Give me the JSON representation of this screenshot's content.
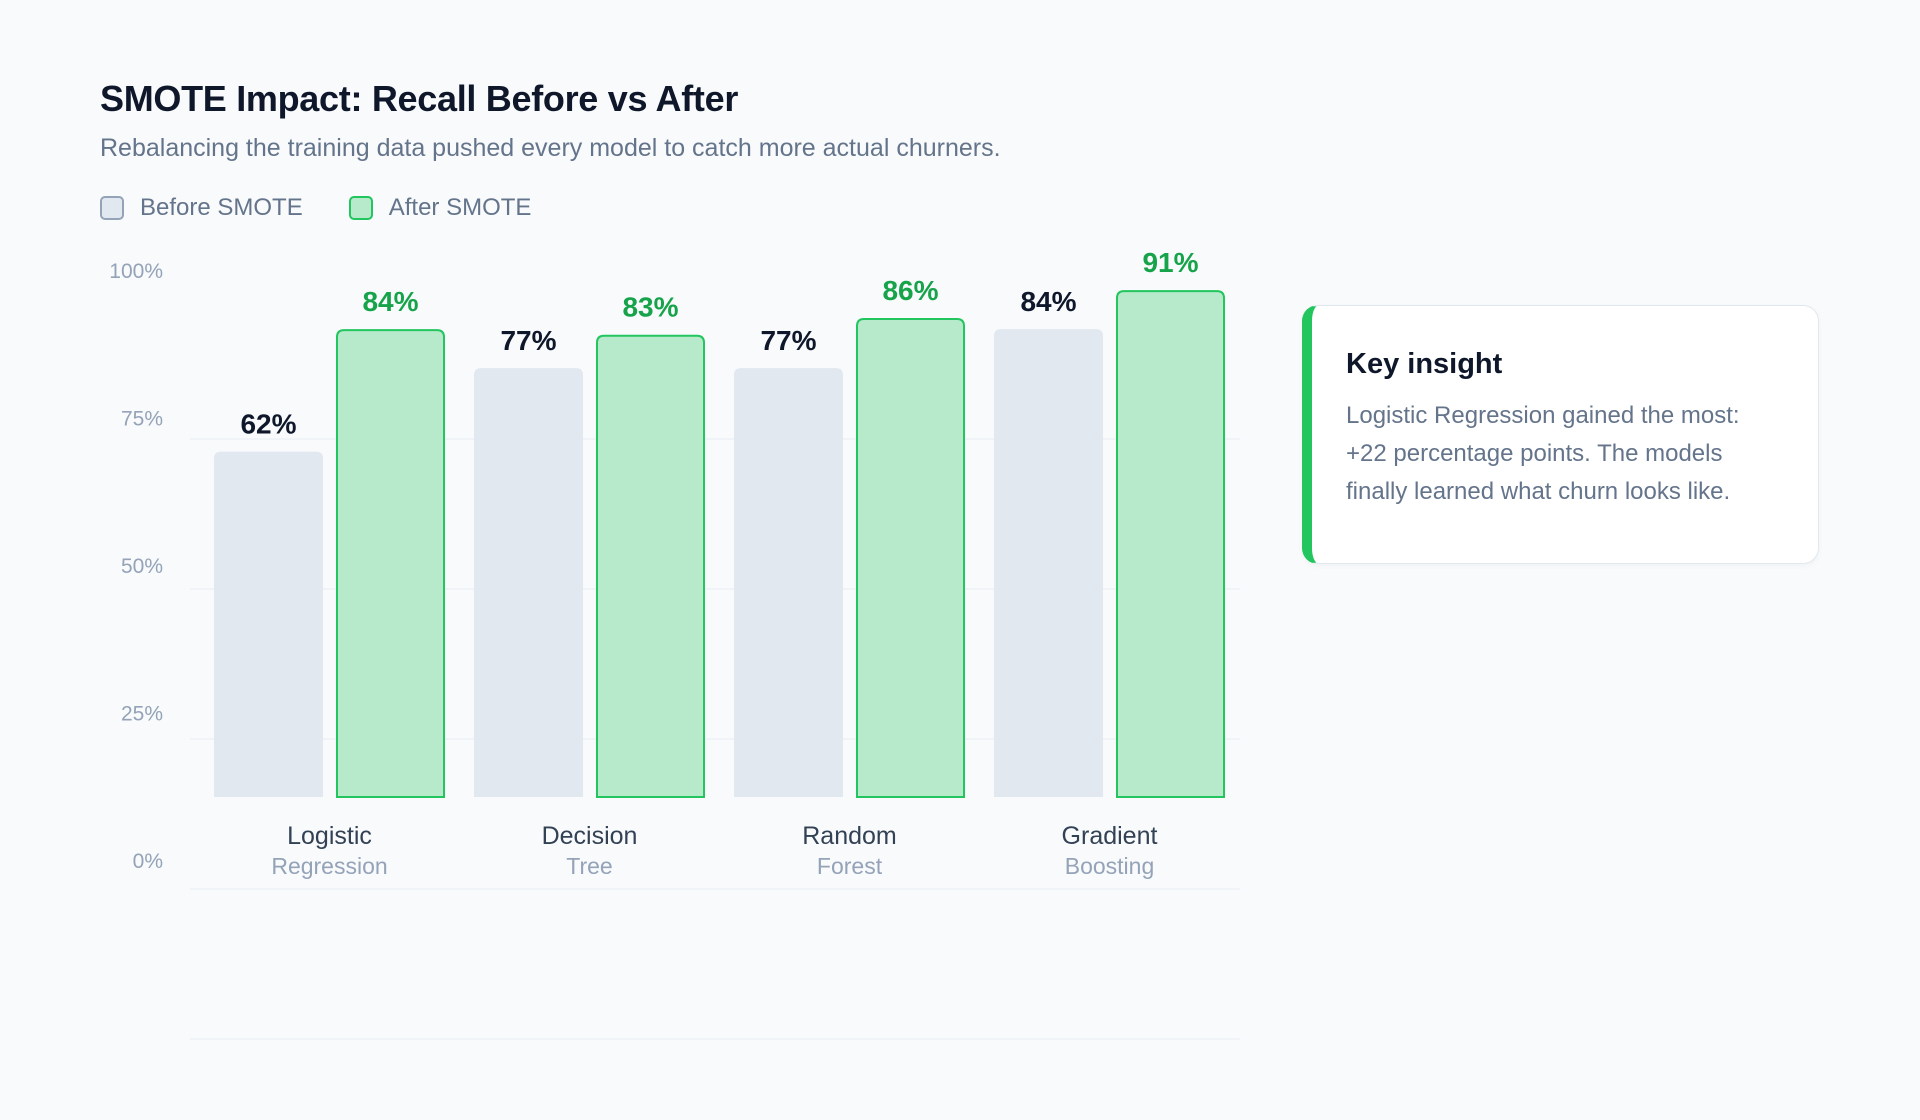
{
  "header": {
    "title": "SMOTE Impact: Recall Before vs After",
    "subtitle": "Rebalancing the training data pushed every model to catch more actual churners."
  },
  "legend": {
    "before_label": "Before SMOTE",
    "after_label": "After SMOTE"
  },
  "insight": {
    "title": "Key insight",
    "body": "Logistic Regression gained the most: +22 percentage points. The models finally learned what churn looks like."
  },
  "colors": {
    "before_fill": "#e2e8f0",
    "after_fill": "#b7e9cb",
    "after_stroke": "#22c55e",
    "after_label": "#16a34a",
    "before_label": "#0f172a",
    "accent": "#22c55e"
  },
  "chart_data": {
    "type": "bar",
    "ylim": [
      0,
      100
    ],
    "y_ticks": [
      0,
      25,
      50,
      75,
      100
    ],
    "y_tick_labels": [
      "0%",
      "25%",
      "50%",
      "75%",
      "100%"
    ],
    "grid": true,
    "legend_placement": "top-left",
    "categories": [
      {
        "line1": "Logistic",
        "line2": "Regression"
      },
      {
        "line1": "Decision",
        "line2": "Tree"
      },
      {
        "line1": "Random",
        "line2": "Forest"
      },
      {
        "line1": "Gradient",
        "line2": "Boosting"
      }
    ],
    "series": [
      {
        "name": "Before SMOTE",
        "values": [
          62,
          77,
          77,
          84
        ],
        "labels": [
          "62%",
          "77%",
          "77%",
          "84%"
        ]
      },
      {
        "name": "After SMOTE",
        "values": [
          84,
          83,
          86,
          91
        ],
        "labels": [
          "84%",
          "83%",
          "86%",
          "91%"
        ]
      }
    ]
  }
}
